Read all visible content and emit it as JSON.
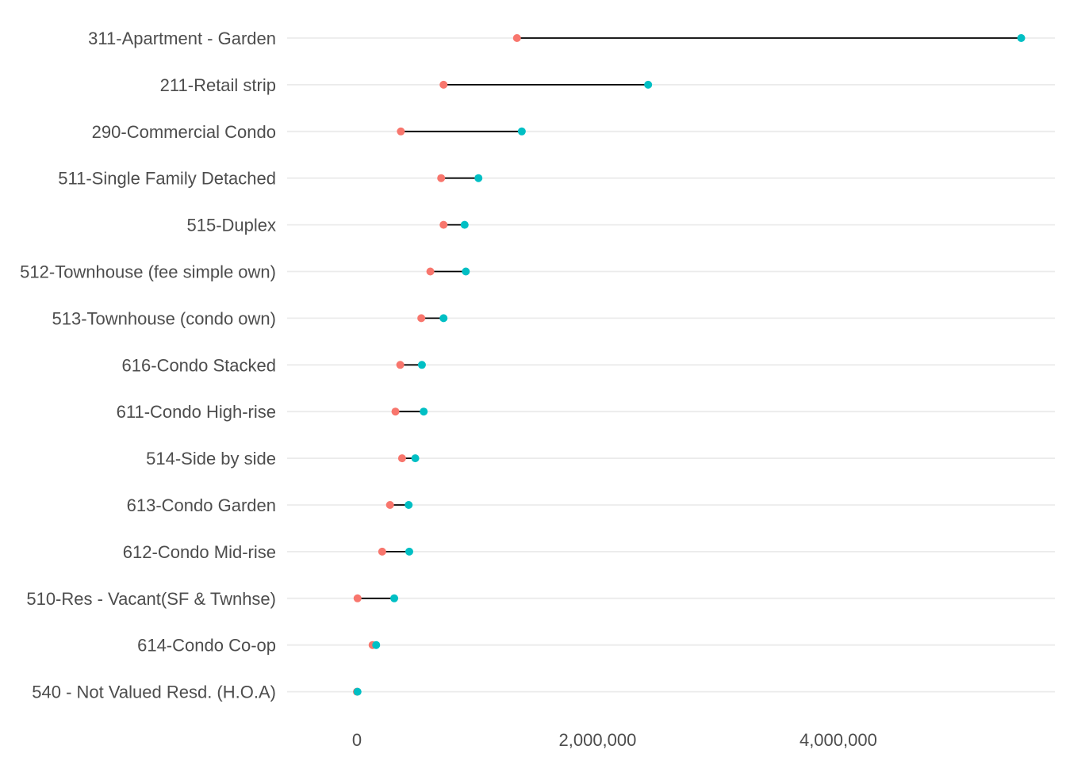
{
  "chart_data": {
    "type": "dumbbell",
    "title": "",
    "xlabel": "",
    "ylabel": "",
    "xlim": [
      -580000,
      5800000
    ],
    "x_ticks": [
      0,
      2000000,
      4000000
    ],
    "x_tick_labels": [
      "0",
      "2,000,000",
      "4,000,000"
    ],
    "grid": "horizontal major lines at each category",
    "legend": "none",
    "colors": {
      "low": "#F8766D",
      "high": "#00BFC4",
      "segment": "#000000",
      "grid": "#EBEBEB",
      "text": "#4D4D4D"
    },
    "categories": [
      "311-Apartment - Garden",
      "211-Retail strip",
      "290-Commercial Condo",
      "511-Single Family Detached",
      "515-Duplex",
      "512-Townhouse (fee simple own)",
      "513-Townhouse (condo own)",
      "616-Condo Stacked",
      "611-Condo High-rise",
      "514-Side by side",
      "613-Condo Garden",
      "612-Condo Mid-rise",
      "510-Res - Vacant(SF & Twnhse)",
      "614-Condo Co-op",
      "540 - Not Valued Resd. (H.O.A)"
    ],
    "series": [
      {
        "values": [
          1330000,
          720000,
          365000,
          700000,
          720000,
          610000,
          535000,
          360000,
          320000,
          375000,
          275000,
          210000,
          5000,
          130000,
          0
        ]
      },
      {
        "values": [
          5520000,
          2420000,
          1370000,
          1010000,
          895000,
          905000,
          720000,
          540000,
          555000,
          485000,
          430000,
          435000,
          310000,
          160000,
          5000
        ]
      }
    ]
  }
}
